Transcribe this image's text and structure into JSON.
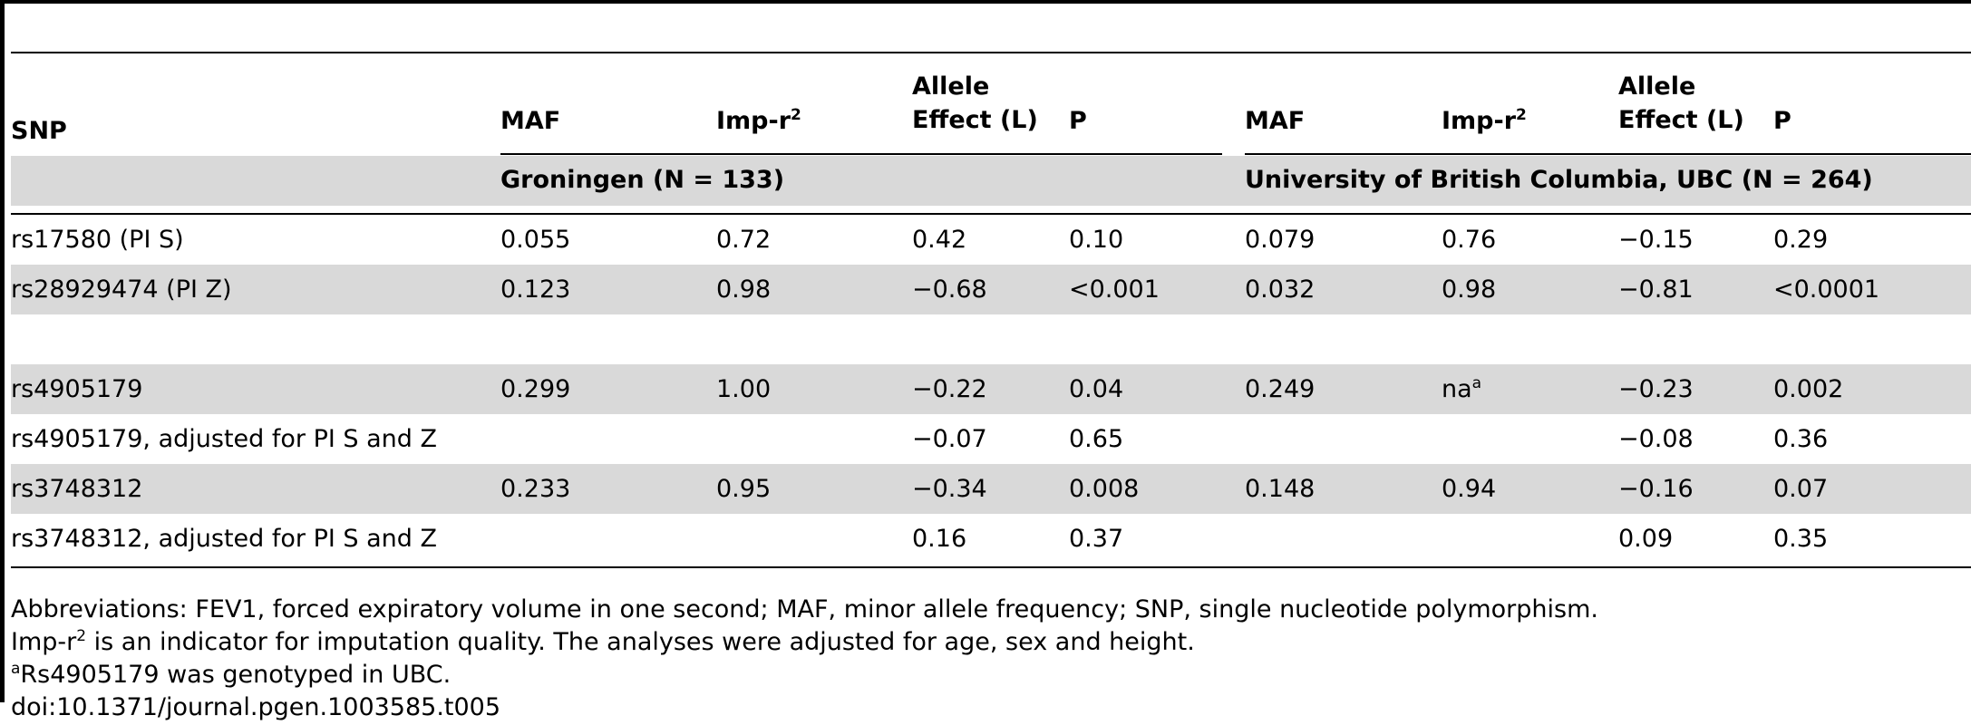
{
  "table": {
    "header": {
      "snp": "SNP",
      "maf_1": "MAF",
      "imp_1": "Imp-r",
      "imp_1_sup": "2",
      "allele_1_line1": "Allele",
      "allele_1_line2": "Effect (L)",
      "p_1": "P",
      "maf_2": "MAF",
      "imp_2": "Imp-r",
      "imp_2_sup": "2",
      "allele_2_line1": "Allele",
      "allele_2_line2": "Effect (L)",
      "p_2": "P"
    },
    "groups": {
      "groningen": "Groningen (N = 133)",
      "ubc": "University of British Columbia, UBC (N = 264)"
    },
    "rows": [
      {
        "snp": "rs17580 (PI S)",
        "maf1": "0.055",
        "imp1": "0.72",
        "eff1": "0.42",
        "p1": "0.10",
        "maf2": "0.079",
        "imp2": "0.76",
        "imp2_sup": "",
        "eff2": "−0.15",
        "p2": "0.29"
      },
      {
        "snp": "rs28929474 (PI Z)",
        "maf1": "0.123",
        "imp1": "0.98",
        "eff1": "−0.68",
        "p1": "<0.001",
        "maf2": "0.032",
        "imp2": "0.98",
        "imp2_sup": "",
        "eff2": "−0.81",
        "p2": "<0.0001"
      },
      {
        "snp": "",
        "maf1": "",
        "imp1": "",
        "eff1": "",
        "p1": "",
        "maf2": "",
        "imp2": "",
        "imp2_sup": "",
        "eff2": "",
        "p2": ""
      },
      {
        "snp": "rs4905179",
        "maf1": "0.299",
        "imp1": "1.00",
        "eff1": "−0.22",
        "p1": "0.04",
        "maf2": "0.249",
        "imp2": "na",
        "imp2_sup": "a",
        "eff2": "−0.23",
        "p2": "0.002"
      },
      {
        "snp": "rs4905179, adjusted for PI S and Z",
        "maf1": "",
        "imp1": "",
        "eff1": "−0.07",
        "p1": "0.65",
        "maf2": "",
        "imp2": "",
        "imp2_sup": "",
        "eff2": "−0.08",
        "p2": "0.36"
      },
      {
        "snp": "rs3748312",
        "maf1": "0.233",
        "imp1": "0.95",
        "eff1": "−0.34",
        "p1": "0.008",
        "maf2": "0.148",
        "imp2": "0.94",
        "imp2_sup": "",
        "eff2": "−0.16",
        "p2": "0.07"
      },
      {
        "snp": "rs3748312, adjusted for PI S and Z",
        "maf1": "",
        "imp1": "",
        "eff1": "0.16",
        "p1": "0.37",
        "maf2": "",
        "imp2": "",
        "imp2_sup": "",
        "eff2": "0.09",
        "p2": "0.35"
      }
    ]
  },
  "footnotes": {
    "abbrev": "Abbreviations: FEV1, forced expiratory volume in one second; MAF, minor allele frequency; SNP, single nucleotide polymorphism.",
    "imp_prefix": "Imp-r",
    "imp_sup": "2",
    "imp_rest": " is an indicator for imputation quality. The analyses were adjusted for age, sex and height.",
    "note_a_sup": "a",
    "note_a_text": "Rs4905179 was genotyped in UBC.",
    "doi": "doi:10.1371/journal.pgen.1003585.t005"
  }
}
